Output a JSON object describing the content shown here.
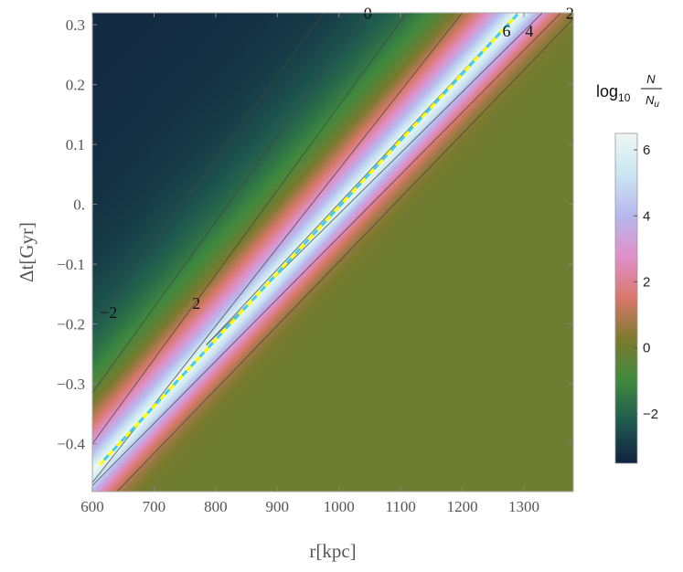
{
  "chart_data": {
    "type": "heatmap",
    "xlabel": "r[kpc]",
    "ylabel": "Δt[Gyr]",
    "xlim": [
      600,
      1380
    ],
    "ylim": [
      -0.48,
      0.32
    ],
    "x_ticks": [
      "600",
      "700",
      "800",
      "900",
      "1000",
      "1100",
      "1200",
      "1300"
    ],
    "y_ticks": [
      "0.3",
      "0.2",
      "0.1",
      "0.",
      "−0.1",
      "−0.2",
      "−0.3",
      "−0.4"
    ],
    "colorbar": {
      "title_base": "log",
      "title_sub": "10",
      "title_num": "N",
      "title_den": "N",
      "title_den_sub": "u",
      "range": [
        -3.5,
        6.5
      ],
      "ticks": [
        "6",
        "4",
        "2",
        "0",
        "−2"
      ],
      "colors": [
        "#10213f",
        "#1f5a4f",
        "#3f8a3e",
        "#7b7a2e",
        "#d9786a",
        "#e08fc8",
        "#b8b7ee",
        "#c9e6f2",
        "#eef7f2"
      ]
    },
    "field": {
      "peak_line": {
        "x": [
          600,
          1290
        ],
        "y": [
          -0.445,
          0.32
        ]
      },
      "peak_value": 6.5,
      "lower_side_value": 0.0,
      "upper_side_value": -3.3
    },
    "contours": [
      {
        "level": -2,
        "x": [
          600,
          975
        ],
        "y": [
          -0.205,
          0.32
        ]
      },
      {
        "level": 0,
        "x": [
          600,
          1045
        ],
        "y": [
          -0.315,
          0.32
        ]
      },
      {
        "level": 2,
        "x": [
          600,
          1110
        ],
        "y": [
          -0.4,
          0.32
        ]
      },
      {
        "level": 4,
        "x": [
          600,
          1200
        ],
        "y": [
          -0.465,
          0.32
        ]
      },
      {
        "level": 6,
        "x": [
          785,
          1290
        ],
        "y": [
          -0.235,
          0.32
        ]
      }
    ],
    "contour_labels": [
      {
        "text": "−2",
        "x": 612,
        "y": -0.19
      },
      {
        "text": "0",
        "x": 1040,
        "y": 0.31
      },
      {
        "text": "2",
        "x": 762,
        "y": -0.175
      },
      {
        "text": "6",
        "x": 1265,
        "y": 0.28
      },
      {
        "text": "4",
        "x": 1302,
        "y": 0.28
      },
      {
        "text": "2",
        "x": 1368,
        "y": 0.31
      }
    ],
    "fit_line": {
      "x": [
        612,
        1290
      ],
      "y": [
        -0.435,
        0.318
      ],
      "colors": [
        "#ffff00",
        "#3fd0e8"
      ]
    }
  }
}
